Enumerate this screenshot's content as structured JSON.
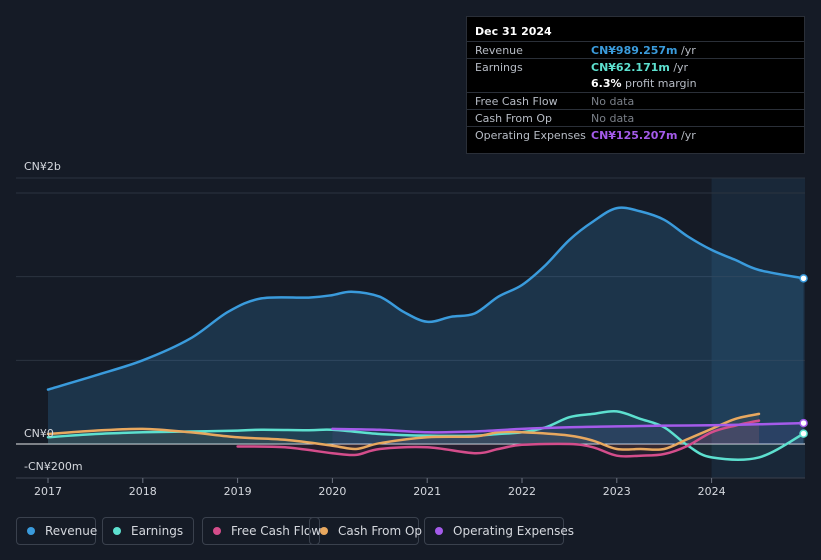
{
  "tooltip": {
    "date": "Dec 31 2024",
    "rows": [
      {
        "label": "Revenue",
        "value": "CN¥989.257m",
        "unit": "/yr",
        "color": "#3a9bdc"
      },
      {
        "label": "Earnings",
        "value": "CN¥62.171m",
        "unit": "/yr",
        "color": "#5de0cf"
      },
      {
        "label": "",
        "value": "6.3%",
        "unit": "profit margin",
        "color": "#ffffff"
      },
      {
        "label": "Free Cash Flow",
        "value": "",
        "unit": "No data",
        "color": "#888888"
      },
      {
        "label": "Cash From Op",
        "value": "",
        "unit": "No data",
        "color": "#888888"
      },
      {
        "label": "Operating Expenses",
        "value": "CN¥125.207m",
        "unit": "/yr",
        "color": "#a45bea"
      }
    ]
  },
  "legend": [
    {
      "label": "Revenue",
      "color": "#3a9bdc"
    },
    {
      "label": "Earnings",
      "color": "#5de0cf"
    },
    {
      "label": "Free Cash Flow",
      "color": "#d44d8b"
    },
    {
      "label": "Cash From Op",
      "color": "#e8a85f"
    },
    {
      "label": "Operating Expenses",
      "color": "#a45bea"
    }
  ],
  "chart_data": {
    "type": "line",
    "y_tick_labels": [
      "CN¥2b",
      "CN¥0",
      "-CN¥200m"
    ],
    "ylim": [
      -200,
      1600
    ],
    "x_ticks": [
      {
        "label": "2017",
        "x": 2017
      },
      {
        "label": "2018",
        "x": 2018
      },
      {
        "label": "2019",
        "x": 2019
      },
      {
        "label": "2020",
        "x": 2020
      },
      {
        "label": "2021",
        "x": 2021
      },
      {
        "label": "2022",
        "x": 2022
      },
      {
        "label": "2023",
        "x": 2023
      },
      {
        "label": "2024",
        "x": 2024
      }
    ],
    "xlim": [
      2016.67,
      2024.97
    ],
    "forecast_start": 2024.0,
    "series": [
      {
        "name": "Revenue",
        "color": "#3a9bdc",
        "fill": true,
        "x": [
          2017.0,
          2017.5,
          2018.0,
          2018.5,
          2018.9,
          2019.25,
          2019.75,
          2020.0,
          2020.2,
          2020.5,
          2020.75,
          2021.0,
          2021.25,
          2021.5,
          2021.75,
          2022.0,
          2022.25,
          2022.5,
          2022.75,
          2023.0,
          2023.25,
          2023.5,
          2023.75,
          2024.0,
          2024.25,
          2024.5,
          2024.97
        ],
        "y": [
          325,
          410,
          500,
          630,
          790,
          870,
          875,
          890,
          910,
          880,
          790,
          730,
          760,
          780,
          880,
          950,
          1070,
          1220,
          1330,
          1410,
          1390,
          1340,
          1240,
          1160,
          1100,
          1040,
          990
        ]
      },
      {
        "name": "Earnings",
        "color": "#5de0cf",
        "fill": false,
        "x": [
          2017.0,
          2017.5,
          2018.0,
          2018.5,
          2019.0,
          2019.25,
          2019.75,
          2020.0,
          2020.5,
          2021.0,
          2021.5,
          2021.75,
          2022.0,
          2022.25,
          2022.5,
          2022.75,
          2023.0,
          2023.25,
          2023.5,
          2023.75,
          2024.0,
          2024.5,
          2024.97
        ],
        "y": [
          40,
          60,
          70,
          75,
          80,
          85,
          82,
          85,
          60,
          50,
          50,
          60,
          70,
          100,
          160,
          180,
          195,
          150,
          100,
          -10,
          -80,
          -80,
          62
        ]
      },
      {
        "name": "Free Cash Flow",
        "color": "#d44d8b",
        "fill": false,
        "x": [
          2019.0,
          2019.5,
          2020.0,
          2020.25,
          2020.5,
          2021.0,
          2021.5,
          2021.75,
          2022.0,
          2022.5,
          2022.75,
          2023.0,
          2023.25,
          2023.5,
          2023.75,
          2024.0,
          2024.25,
          2024.5
        ],
        "y": [
          -15,
          -20,
          -55,
          -65,
          -30,
          -20,
          -55,
          -30,
          -5,
          0,
          -20,
          -70,
          -70,
          -60,
          -10,
          70,
          110,
          140
        ]
      },
      {
        "name": "Cash From Op",
        "color": "#e8a85f",
        "fill": false,
        "x": [
          2017.0,
          2017.5,
          2018.0,
          2018.5,
          2019.0,
          2019.5,
          2020.0,
          2020.25,
          2020.5,
          2021.0,
          2021.5,
          2021.75,
          2022.0,
          2022.5,
          2022.75,
          2023.0,
          2023.25,
          2023.5,
          2023.75,
          2024.0,
          2024.25,
          2024.5
        ],
        "y": [
          60,
          80,
          90,
          70,
          40,
          25,
          -10,
          -30,
          5,
          40,
          45,
          70,
          70,
          50,
          20,
          -30,
          -30,
          -30,
          30,
          90,
          150,
          180
        ]
      },
      {
        "name": "Operating Expenses",
        "color": "#a45bea",
        "fill": false,
        "x": [
          2020.0,
          2020.5,
          2021.0,
          2021.5,
          2022.0,
          2022.5,
          2023.0,
          2023.5,
          2024.0,
          2024.5,
          2024.97
        ],
        "y": [
          90,
          85,
          70,
          75,
          90,
          100,
          105,
          110,
          112,
          118,
          125
        ]
      }
    ]
  }
}
